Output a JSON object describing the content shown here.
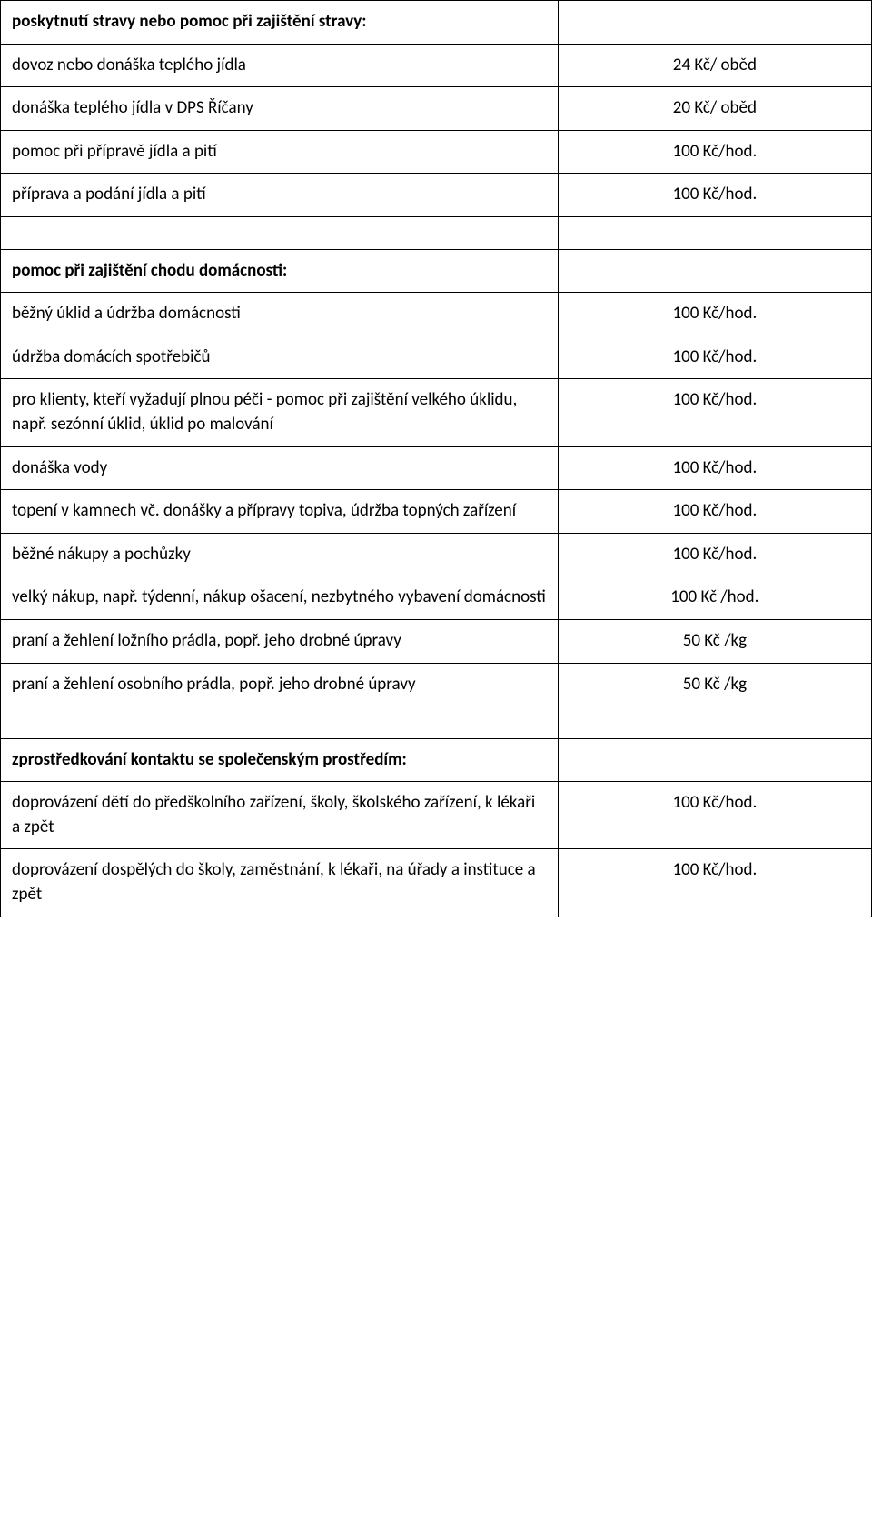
{
  "table": {
    "columns": [
      {
        "width": "64%",
        "align": "left"
      },
      {
        "width": "36%",
        "align": "center"
      }
    ],
    "bg_color": "#ffffff",
    "border_color": "#000000",
    "font_family": "Calibri",
    "font_size": 19,
    "row_padding": 10
  },
  "sections": {
    "food": {
      "header": "poskytnutí stravy nebo pomoc při zajištění stravy:",
      "rows": [
        {
          "label": "dovoz nebo donáška teplého jídla",
          "price": "24 Kč/ oběd"
        },
        {
          "label": "donáška teplého jídla v DPS Říčany",
          "price": "20 Kč/ oběd"
        },
        {
          "label": "pomoc při přípravě jídla a pití",
          "price": "100 Kč/hod."
        },
        {
          "label": "příprava a podání jídla a pití",
          "price": "100 Kč/hod."
        }
      ]
    },
    "household": {
      "header": "pomoc při zajištění chodu domácnosti:",
      "rows": [
        {
          "label": "běžný úklid a údržba domácnosti",
          "price": "100 Kč/hod."
        },
        {
          "label": "údržba domácích spotřebičů",
          "price": "100 Kč/hod."
        },
        {
          "label": "pro klienty, kteří vyžadují plnou péči - pomoc při zajištění velkého úklidu, např. sezónní úklid, úklid po malování",
          "price": "100 Kč/hod."
        },
        {
          "label": "donáška vody",
          "price": "100 Kč/hod."
        },
        {
          "label": "topení v kamnech vč. donášky a přípravy topiva, údržba topných zařízení",
          "price": "100 Kč/hod."
        },
        {
          "label": "běžné nákupy a pochůzky",
          "price": "100 Kč/hod."
        },
        {
          "label": "velký nákup, např. týdenní, nákup ošacení, nezbytného vybavení domácnosti",
          "price": "100 Kč /hod."
        },
        {
          "label": "praní a žehlení ložního prádla, popř. jeho drobné úpravy",
          "price": "50 Kč /kg"
        },
        {
          "label": "praní a žehlení osobního prádla, popř. jeho drobné úpravy",
          "price": "50 Kč /kg"
        }
      ]
    },
    "social": {
      "header": "zprostředkování kontaktu se společenským prostředím:",
      "rows": [
        {
          "label": "doprovázení dětí do předškolního zařízení, školy, školského zařízení, k lékaři a zpět",
          "price": "100 Kč/hod."
        },
        {
          "label": "doprovázení dospělých do školy, zaměstnání, k lékaři, na úřady a instituce a zpět",
          "price": "100 Kč/hod."
        }
      ]
    }
  }
}
